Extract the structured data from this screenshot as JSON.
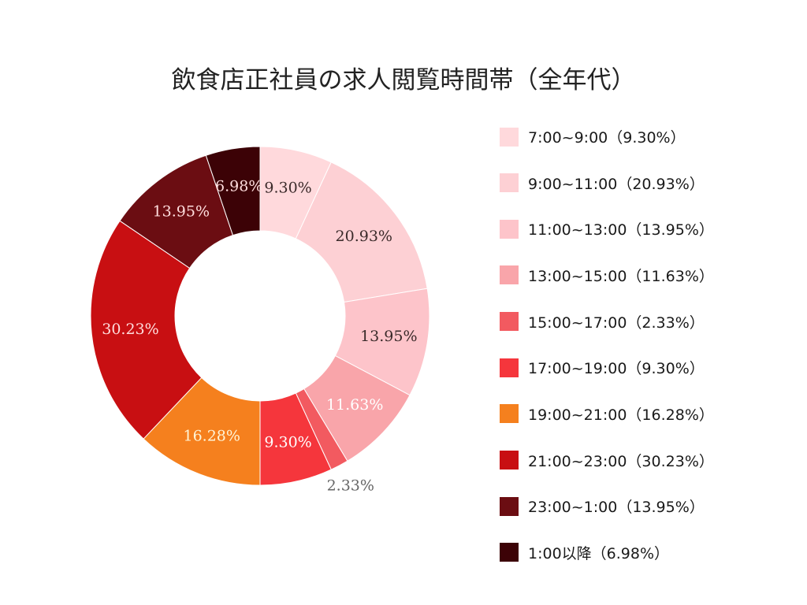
{
  "chart_data": {
    "type": "pie",
    "donut": true,
    "title": "飲食店正社員の求人閲覧時間帯（全年代）",
    "slices": [
      {
        "category": "7:00~9:00",
        "value": 9.3,
        "label": "9.30%",
        "legend": "7:00~9:00（9.30%）",
        "color": "#ffd9dc",
        "label_color": "#3a2a2a"
      },
      {
        "category": "9:00~11:00",
        "value": 20.93,
        "label": "20.93%",
        "legend": "9:00~11:00（20.93%）",
        "color": "#fdd0d4",
        "label_color": "#3a2a2a"
      },
      {
        "category": "11:00~13:00",
        "value": 13.95,
        "label": "13.95%",
        "legend": "11:00~13:00（13.95%）",
        "color": "#fdc4ca",
        "label_color": "#3a2a2a"
      },
      {
        "category": "13:00~15:00",
        "value": 11.63,
        "label": "11.63%",
        "legend": "13:00~15:00（11.63%）",
        "color": "#f9a5aa",
        "label_color": "#ffffff"
      },
      {
        "category": "15:00~17:00",
        "value": 2.33,
        "label": "2.33%",
        "legend": "15:00~17:00（2.33%）",
        "color": "#f25a60",
        "label_color": "#666666"
      },
      {
        "category": "17:00~19:00",
        "value": 9.3,
        "label": "9.30%",
        "legend": "17:00~19:00（9.30%）",
        "color": "#f5363c",
        "label_color": "#ffffff"
      },
      {
        "category": "19:00~21:00",
        "value": 16.28,
        "label": "16.28%",
        "legend": "19:00~21:00（16.28%）",
        "color": "#f5801e",
        "label_color": "#fff4d6"
      },
      {
        "category": "21:00~23:00",
        "value": 30.23,
        "label": "30.23%",
        "legend": "21:00~23:00（30.23%）",
        "color": "#c80f12",
        "label_color": "#ffdede"
      },
      {
        "category": "23:00~1:00",
        "value": 13.95,
        "label": "13.95%",
        "legend": "23:00~1:00（13.95%）",
        "color": "#6b0d12",
        "label_color": "#ffdede"
      },
      {
        "category": "1:00以降",
        "value": 6.98,
        "label": "6.98%",
        "legend": "1:00以降（6.98%）",
        "color": "#3c0206",
        "label_color": "#ffdede"
      }
    ]
  }
}
